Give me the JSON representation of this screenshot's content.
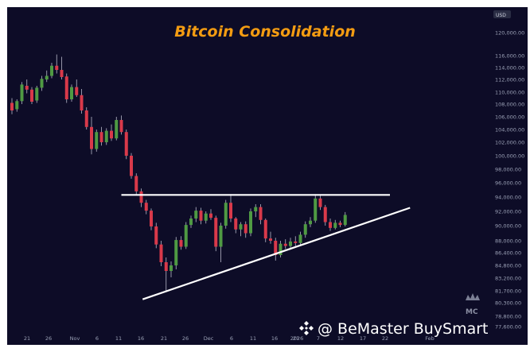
{
  "chart_data": {
    "type": "candlestick",
    "title": "Bitcoin Consolidation",
    "currency": "USD",
    "y_ticks": [
      "120,000.00",
      "116,000.00",
      "114,000.00",
      "112,000.00",
      "110,000.00",
      "108,000.00",
      "106,000.00",
      "104,000.00",
      "102,000.00",
      "100,000.00",
      "98,000.00",
      "96,000.00",
      "94,000.00",
      "92,000.00",
      "90,000.00",
      "88,000.00",
      "86,400.00",
      "84,800.00",
      "83,200.00",
      "81,700.00",
      "80,300.00",
      "78,800.00",
      "77,600.00"
    ],
    "x_ticks": [
      "21",
      "26",
      "Nov",
      "6",
      "11",
      "16",
      "21",
      "26",
      "Dec",
      "6",
      "11",
      "16",
      "21",
      "2026",
      "7",
      "12",
      "17",
      "22",
      "Feb"
    ],
    "candles": [
      {
        "o": 108200,
        "h": 109000,
        "l": 106400,
        "c": 107000
      },
      {
        "o": 107200,
        "h": 108800,
        "l": 106800,
        "c": 108500
      },
      {
        "o": 108500,
        "h": 111600,
        "l": 108000,
        "c": 111200
      },
      {
        "o": 111000,
        "h": 112000,
        "l": 109800,
        "c": 110400
      },
      {
        "o": 110400,
        "h": 110800,
        "l": 108000,
        "c": 108400
      },
      {
        "o": 108600,
        "h": 111000,
        "l": 108200,
        "c": 110700
      },
      {
        "o": 110700,
        "h": 112600,
        "l": 110200,
        "c": 112100
      },
      {
        "o": 112000,
        "h": 113500,
        "l": 111600,
        "c": 112600
      },
      {
        "o": 112600,
        "h": 114800,
        "l": 112200,
        "c": 114300
      },
      {
        "o": 114300,
        "h": 116200,
        "l": 113000,
        "c": 113600
      },
      {
        "o": 113600,
        "h": 115800,
        "l": 112000,
        "c": 112400
      },
      {
        "o": 112500,
        "h": 113000,
        "l": 108200,
        "c": 108800
      },
      {
        "o": 108800,
        "h": 111200,
        "l": 108400,
        "c": 110800
      },
      {
        "o": 110800,
        "h": 112000,
        "l": 109200,
        "c": 109500
      },
      {
        "o": 109500,
        "h": 110500,
        "l": 106500,
        "c": 107000
      },
      {
        "o": 107000,
        "h": 107500,
        "l": 104000,
        "c": 104400
      },
      {
        "o": 104400,
        "h": 106000,
        "l": 100200,
        "c": 101000
      },
      {
        "o": 101000,
        "h": 104000,
        "l": 100600,
        "c": 103600
      },
      {
        "o": 103600,
        "h": 104400,
        "l": 101500,
        "c": 102000
      },
      {
        "o": 102000,
        "h": 104200,
        "l": 101600,
        "c": 103800
      },
      {
        "o": 103800,
        "h": 104800,
        "l": 102200,
        "c": 102600
      },
      {
        "o": 102600,
        "h": 106000,
        "l": 102300,
        "c": 105500
      },
      {
        "o": 105500,
        "h": 106200,
        "l": 103200,
        "c": 103600
      },
      {
        "o": 103600,
        "h": 104000,
        "l": 99500,
        "c": 100000
      },
      {
        "o": 100000,
        "h": 100400,
        "l": 96600,
        "c": 97000
      },
      {
        "o": 97000,
        "h": 97400,
        "l": 94400,
        "c": 94800
      },
      {
        "o": 94800,
        "h": 95200,
        "l": 92600,
        "c": 93200
      },
      {
        "o": 93200,
        "h": 93600,
        "l": 91600,
        "c": 92100
      },
      {
        "o": 92100,
        "h": 92400,
        "l": 89400,
        "c": 89900
      },
      {
        "o": 89900,
        "h": 90400,
        "l": 87000,
        "c": 87500
      },
      {
        "o": 87500,
        "h": 88000,
        "l": 84700,
        "c": 85200
      },
      {
        "o": 85200,
        "h": 85800,
        "l": 81600,
        "c": 84100
      },
      {
        "o": 84100,
        "h": 85300,
        "l": 83300,
        "c": 84800
      },
      {
        "o": 84800,
        "h": 88500,
        "l": 84300,
        "c": 88100
      },
      {
        "o": 88100,
        "h": 88600,
        "l": 86800,
        "c": 87200
      },
      {
        "o": 87200,
        "h": 90500,
        "l": 86900,
        "c": 90100
      },
      {
        "o": 90100,
        "h": 91400,
        "l": 89700,
        "c": 91000
      },
      {
        "o": 91000,
        "h": 92600,
        "l": 90500,
        "c": 92100
      },
      {
        "o": 92100,
        "h": 92500,
        "l": 90200,
        "c": 90700
      },
      {
        "o": 90700,
        "h": 92000,
        "l": 90300,
        "c": 91700
      },
      {
        "o": 91700,
        "h": 92300,
        "l": 90800,
        "c": 91100
      },
      {
        "o": 91100,
        "h": 91400,
        "l": 86600,
        "c": 87200
      },
      {
        "o": 87200,
        "h": 90400,
        "l": 85200,
        "c": 90000
      },
      {
        "o": 90000,
        "h": 93600,
        "l": 89600,
        "c": 93200
      },
      {
        "o": 93200,
        "h": 94400,
        "l": 90500,
        "c": 91000
      },
      {
        "o": 91000,
        "h": 91200,
        "l": 89000,
        "c": 89500
      },
      {
        "o": 89500,
        "h": 90500,
        "l": 88600,
        "c": 90200
      },
      {
        "o": 90200,
        "h": 90600,
        "l": 88400,
        "c": 89000
      },
      {
        "o": 89000,
        "h": 92400,
        "l": 88600,
        "c": 92000
      },
      {
        "o": 92000,
        "h": 93000,
        "l": 91200,
        "c": 92600
      },
      {
        "o": 92600,
        "h": 93000,
        "l": 90200,
        "c": 90800
      },
      {
        "o": 90800,
        "h": 91000,
        "l": 87800,
        "c": 88300
      },
      {
        "o": 88300,
        "h": 89200,
        "l": 87600,
        "c": 88000
      },
      {
        "o": 88000,
        "h": 88400,
        "l": 85400,
        "c": 86100
      },
      {
        "o": 86100,
        "h": 88000,
        "l": 85800,
        "c": 87600
      },
      {
        "o": 87600,
        "h": 88200,
        "l": 86900,
        "c": 87300
      },
      {
        "o": 87300,
        "h": 88400,
        "l": 86800,
        "c": 87900
      },
      {
        "o": 87900,
        "h": 88600,
        "l": 87300,
        "c": 87700
      },
      {
        "o": 87700,
        "h": 89200,
        "l": 87400,
        "c": 88800
      },
      {
        "o": 88800,
        "h": 90600,
        "l": 88400,
        "c": 90200
      },
      {
        "o": 90200,
        "h": 91200,
        "l": 89800,
        "c": 90700
      },
      {
        "o": 90700,
        "h": 94400,
        "l": 90400,
        "c": 93800
      },
      {
        "o": 93800,
        "h": 94200,
        "l": 92200,
        "c": 92600
      },
      {
        "o": 92600,
        "h": 92900,
        "l": 90000,
        "c": 90500
      },
      {
        "o": 90500,
        "h": 91000,
        "l": 89300,
        "c": 89700
      },
      {
        "o": 89700,
        "h": 90800,
        "l": 89500,
        "c": 90400
      },
      {
        "o": 90400,
        "h": 90700,
        "l": 89800,
        "c": 90100
      },
      {
        "o": 90100,
        "h": 91900,
        "l": 89900,
        "c": 91500
      }
    ],
    "resistance": {
      "from_index": 22,
      "to_index": 76,
      "price": 94300
    },
    "support": {
      "from_index": 25,
      "from_price": 80700,
      "to_index": 73,
      "to_price": 92500
    }
  },
  "colors": {
    "background": "#0d0c27",
    "up": "#4f9a43",
    "down": "#d9394a",
    "wick": "#b8b8c8",
    "trendline": "#ffffff",
    "title": "#f39c12",
    "axis_text": "#9aa0b5"
  },
  "watermark": "@ BeMaster BuySmart",
  "watermark_icon": "binance-diamond-icon",
  "logo_icon": "crown-monogram-icon"
}
